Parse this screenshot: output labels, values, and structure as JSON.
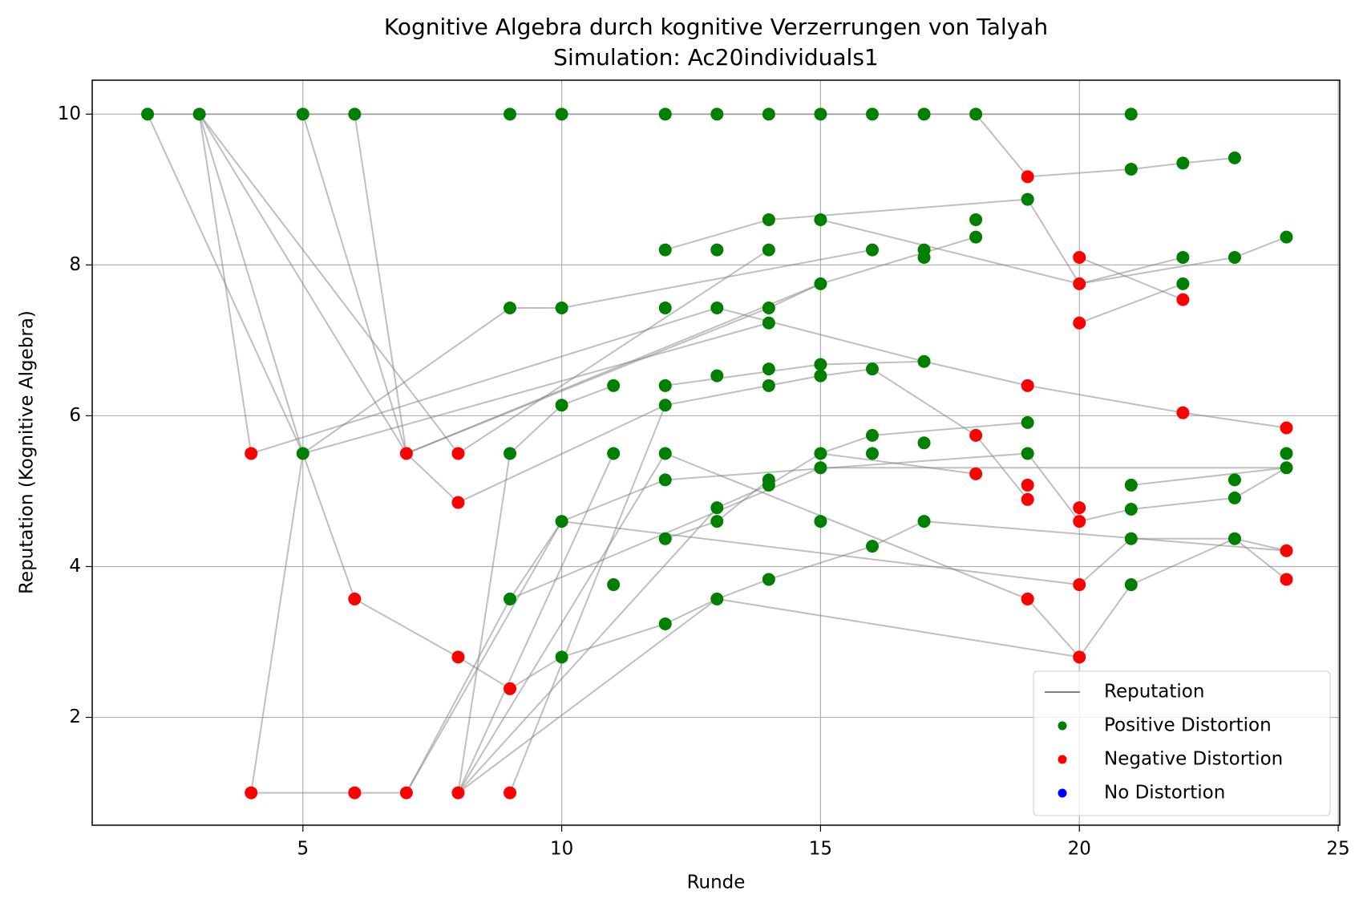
{
  "chart_data": {
    "type": "scatter",
    "title": "Kognitive Algebra durch kognitive Verzerrungen von Talyah",
    "subtitle": "Simulation: Ac20individuals1",
    "x_label": "Runde",
    "y_label": "Reputation (Kognitive Algebra)",
    "xlim": [
      0.93,
      25.03
    ],
    "ylim": [
      0.57,
      10.45
    ],
    "xticks": [
      5,
      10,
      15,
      20,
      25
    ],
    "yticks": [
      2,
      4,
      6,
      8,
      10
    ],
    "grid": true,
    "legend": "lower right",
    "series": [
      {
        "name": "Reputation",
        "color": "#808080",
        "lines": [
          {
            "x": [
              2,
              21
            ],
            "values": [
              10,
              10
            ]
          },
          {
            "x": [
              18,
              19,
              21,
              22,
              23
            ],
            "values": [
              10,
              9.17,
              9.27,
              9.35,
              9.42
            ]
          },
          {
            "x": [
              2,
              5
            ],
            "values": [
              10,
              5.5
            ]
          },
          {
            "x": [
              3,
              4
            ],
            "values": [
              10,
              5.5
            ]
          },
          {
            "x": [
              3,
              5
            ],
            "values": [
              10,
              5.5
            ]
          },
          {
            "x": [
              3,
              7
            ],
            "values": [
              10,
              5.5
            ]
          },
          {
            "x": [
              3,
              8
            ],
            "values": [
              10,
              5.5
            ]
          },
          {
            "x": [
              5,
              7
            ],
            "values": [
              10,
              5.5
            ]
          },
          {
            "x": [
              6,
              7
            ],
            "values": [
              10,
              5.5
            ]
          },
          {
            "x": [
              4,
              13
            ],
            "values": [
              5.5,
              7.43
            ]
          },
          {
            "x": [
              5,
              9,
              10
            ],
            "values": [
              5.5,
              7.43,
              7.43
            ]
          },
          {
            "x": [
              5,
              4
            ],
            "values": [
              5.5,
              1
            ]
          },
          {
            "x": [
              5,
              6,
              8,
              9,
              10
            ],
            "values": [
              5.5,
              3.57,
              2.8,
              2.38,
              2.8
            ]
          },
          {
            "x": [
              5,
              14
            ],
            "values": [
              5.5,
              7.23
            ]
          },
          {
            "x": [
              7,
              8,
              12
            ],
            "values": [
              5.5,
              4.85,
              6.14
            ]
          },
          {
            "x": [
              7,
              15
            ],
            "values": [
              5.5,
              7.75
            ]
          },
          {
            "x": [
              7,
              14,
              15,
              18
            ],
            "values": [
              5.5,
              7.43,
              7.75,
              8.37
            ]
          },
          {
            "x": [
              8,
              14
            ],
            "values": [
              5.5,
              8.2
            ]
          },
          {
            "x": [
              4,
              7
            ],
            "values": [
              1,
              1
            ]
          },
          {
            "x": [
              7,
              10
            ],
            "values": [
              1,
              4.6
            ]
          },
          {
            "x": [
              7,
              9
            ],
            "values": [
              1,
              3.57
            ]
          },
          {
            "x": [
              8,
              9,
              10,
              11
            ],
            "values": [
              1,
              5.5,
              6.14,
              6.4
            ]
          },
          {
            "x": [
              8,
              11
            ],
            "values": [
              1,
              5.5
            ]
          },
          {
            "x": [
              8,
              12
            ],
            "values": [
              1,
              5.5
            ]
          },
          {
            "x": [
              8,
              13
            ],
            "values": [
              1,
              4.78
            ]
          },
          {
            "x": [
              8,
              13
            ],
            "values": [
              1,
              3.57
            ]
          },
          {
            "x": [
              9,
              12
            ],
            "values": [
              1,
              6.14
            ]
          },
          {
            "x": [
              10,
              16
            ],
            "values": [
              7.43,
              8.2
            ]
          },
          {
            "x": [
              12,
              14,
              19,
              20,
              22
            ],
            "values": [
              8.2,
              8.6,
              8.87,
              7.75,
              8.1
            ]
          },
          {
            "x": [
              13,
              17,
              19,
              22,
              24
            ],
            "values": [
              7.43,
              6.72,
              6.4,
              6.04,
              5.84
            ]
          },
          {
            "x": [
              15,
              20,
              23,
              24
            ],
            "values": [
              8.6,
              7.75,
              8.1,
              8.37
            ]
          },
          {
            "x": [
              20,
              22
            ],
            "values": [
              8.1,
              7.54
            ]
          },
          {
            "x": [
              20,
              22
            ],
            "values": [
              7.23,
              7.75
            ]
          },
          {
            "x": [
              12,
              15,
              17
            ],
            "values": [
              6.4,
              6.68,
              6.72
            ]
          },
          {
            "x": [
              12,
              15,
              16,
              18,
              19
            ],
            "values": [
              6.14,
              6.53,
              6.62,
              5.74,
              4.89
            ]
          },
          {
            "x": [
              16,
              19
            ],
            "values": [
              5.74,
              5.91
            ]
          },
          {
            "x": [
              15,
              18
            ],
            "values": [
              5.5,
              5.23
            ]
          },
          {
            "x": [
              9,
              10,
              12,
              19,
              20,
              21,
              23,
              24
            ],
            "values": [
              3.57,
              4.6,
              5.15,
              5.5,
              4.6,
              4.76,
              4.91,
              5.31
            ]
          },
          {
            "x": [
              9,
              15,
              24
            ],
            "values": [
              3.57,
              5.31,
              5.31
            ]
          },
          {
            "x": [
              10,
              20,
              21,
              23,
              24
            ],
            "values": [
              4.6,
              3.76,
              4.37,
              4.37,
              4.21
            ]
          },
          {
            "x": [
              12,
              19,
              20,
              21,
              23,
              24
            ],
            "values": [
              5.5,
              3.57,
              2.8,
              3.76,
              4.37,
              3.83
            ]
          },
          {
            "x": [
              13,
              20
            ],
            "values": [
              3.57,
              2.8
            ]
          },
          {
            "x": [
              10,
              12,
              13,
              14,
              16,
              17,
              24
            ],
            "values": [
              2.8,
              3.24,
              3.57,
              3.83,
              4.27,
              4.6,
              4.21
            ]
          },
          {
            "x": [
              12,
              13,
              14
            ],
            "values": [
              4.37,
              4.6,
              5.15
            ]
          },
          {
            "x": [
              13,
              14,
              15,
              16
            ],
            "values": [
              4.78,
              5.08,
              5.5,
              5.74
            ]
          },
          {
            "x": [
              21,
              24
            ],
            "values": [
              5.08,
              5.31
            ]
          }
        ]
      },
      {
        "name": "Positive Distortion",
        "color": "#008000",
        "x": [
          2,
          3,
          5,
          6,
          9,
          10,
          12,
          13,
          14,
          15,
          16,
          17,
          18,
          21,
          5,
          19,
          21,
          22,
          23,
          14,
          15,
          18,
          18,
          12,
          13,
          14,
          16,
          17,
          17,
          22,
          23,
          24,
          9,
          10,
          12,
          13,
          14,
          15,
          22,
          14,
          10,
          11,
          12,
          12,
          13,
          14,
          14,
          15,
          15,
          16,
          17,
          9,
          11,
          12,
          12,
          14,
          14,
          15,
          15,
          16,
          16,
          17,
          19,
          19,
          21,
          21,
          23,
          23,
          24,
          24,
          10,
          12,
          13,
          13,
          15,
          16,
          17,
          21,
          23,
          9,
          11,
          13,
          14,
          21,
          12,
          10
        ],
        "values": [
          10,
          10,
          10,
          10,
          10,
          10,
          10,
          10,
          10,
          10,
          10,
          10,
          10,
          10,
          5.5,
          8.87,
          9.27,
          9.35,
          9.42,
          8.6,
          8.6,
          8.6,
          8.37,
          8.2,
          8.2,
          8.2,
          8.2,
          8.2,
          8.1,
          8.1,
          8.1,
          8.37,
          7.43,
          7.43,
          7.43,
          7.43,
          7.43,
          7.75,
          7.75,
          7.23,
          6.14,
          6.4,
          6.4,
          6.14,
          6.53,
          6.62,
          6.4,
          6.68,
          6.53,
          6.62,
          6.72,
          5.5,
          5.5,
          5.5,
          5.15,
          5.15,
          5.08,
          5.5,
          5.31,
          5.74,
          5.5,
          5.64,
          5.91,
          5.5,
          5.08,
          4.76,
          5.15,
          4.91,
          5.5,
          5.31,
          4.6,
          4.37,
          4.78,
          4.6,
          4.6,
          4.27,
          4.6,
          4.37,
          4.37,
          3.57,
          3.76,
          3.57,
          3.83,
          3.76,
          3.24,
          2.8
        ]
      },
      {
        "name": "Negative Distortion",
        "color": "#ff0000",
        "x": [
          4,
          7,
          8,
          8,
          6,
          8,
          9,
          4,
          6,
          7,
          8,
          9,
          19,
          20,
          20,
          20,
          22,
          19,
          22,
          24,
          18,
          18,
          19,
          19,
          20,
          20,
          24,
          24,
          19,
          20,
          20
        ],
        "values": [
          5.5,
          5.5,
          5.5,
          4.85,
          3.57,
          2.8,
          2.38,
          1,
          1,
          1,
          1,
          1,
          9.17,
          8.1,
          7.75,
          7.23,
          7.54,
          6.4,
          6.04,
          5.84,
          5.74,
          5.23,
          5.08,
          4.89,
          4.78,
          4.6,
          4.21,
          3.83,
          3.57,
          3.76,
          2.8
        ]
      },
      {
        "name": "No Distortion",
        "color": "#0000ff",
        "x": [],
        "values": []
      }
    ]
  }
}
